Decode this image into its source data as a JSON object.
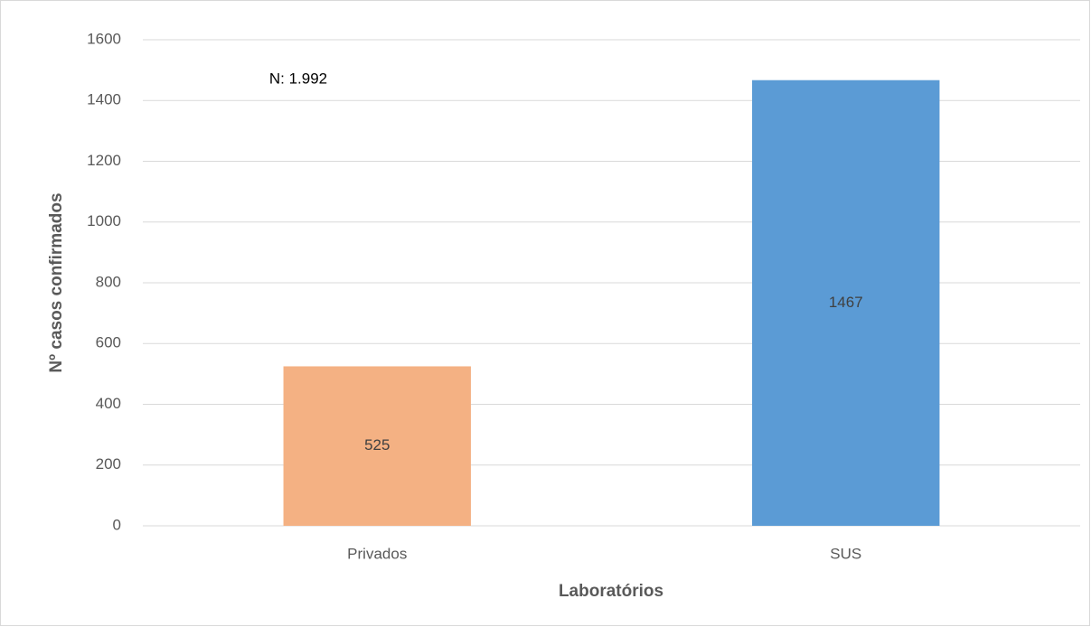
{
  "chart_data": {
    "type": "bar",
    "categories": [
      "Privados",
      "SUS"
    ],
    "values": [
      525,
      1467
    ],
    "colors": [
      "#f4b183",
      "#5b9bd5"
    ],
    "ylim": [
      0,
      1600
    ],
    "yticks": [
      0,
      200,
      400,
      600,
      800,
      1000,
      1200,
      1400,
      1600
    ],
    "grid": true,
    "xlabel": "Laboratórios",
    "ylabel": "Nº casos confirmados",
    "annotation": "N: 1.992"
  }
}
